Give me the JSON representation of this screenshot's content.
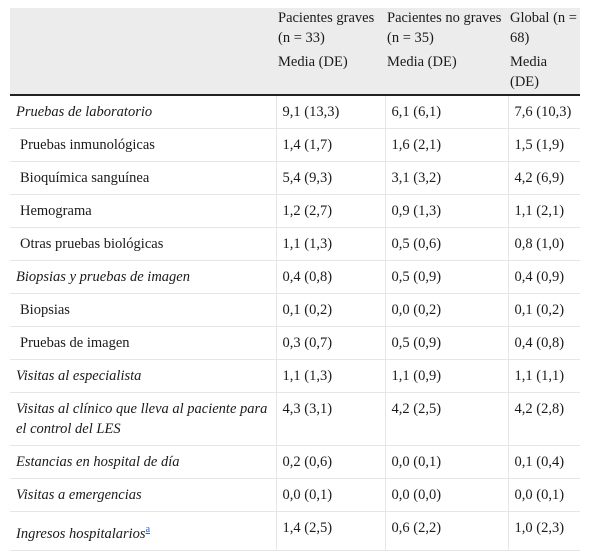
{
  "header": {
    "col1": {
      "line1": "Pacientes graves (n = 33)",
      "line2": "Media (DE)"
    },
    "col2": {
      "line1": "Pacientes no graves (n = 35)",
      "line2": "Media (DE)"
    },
    "col3": {
      "line1": "Global (n = 68)",
      "line2": "Media (DE)"
    }
  },
  "rows": [
    {
      "label": "Pruebas de laboratorio",
      "italic": true,
      "v1": "9,1 (13,3)",
      "v2": "6,1 (6,1)",
      "v3": "7,6 (10,3)"
    },
    {
      "label": "Pruebas inmunológicas",
      "italic": false,
      "v1": "1,4 (1,7)",
      "v2": "1,6 (2,1)",
      "v3": "1,5 (1,9)"
    },
    {
      "label": "Bioquímica sanguínea",
      "italic": false,
      "v1": "5,4 (9,3)",
      "v2": "3,1 (3,2)",
      "v3": "4,2 (6,9)"
    },
    {
      "label": "Hemograma",
      "italic": false,
      "v1": "1,2 (2,7)",
      "v2": "0,9 (1,3)",
      "v3": "1,1 (2,1)"
    },
    {
      "label": "Otras pruebas biológicas",
      "italic": false,
      "v1": "1,1 (1,3)",
      "v2": "0,5 (0,6)",
      "v3": "0,8 (1,0)"
    },
    {
      "label": "Biopsias y pruebas de imagen",
      "italic": true,
      "v1": "0,4 (0,8)",
      "v2": "0,5 (0,9)",
      "v3": "0,4 (0,9)"
    },
    {
      "label": "Biopsias",
      "italic": false,
      "v1": "0,1 (0,2)",
      "v2": "0,0 (0,2)",
      "v3": "0,1 (0,2)"
    },
    {
      "label": "Pruebas de imagen",
      "italic": false,
      "v1": "0,3 (0,7)",
      "v2": "0,5 (0,9)",
      "v3": "0,4 (0,8)"
    },
    {
      "label": "Visitas al especialista",
      "italic": true,
      "v1": "1,1 (1,3)",
      "v2": "1,1 (0,9)",
      "v3": "1,1 (1,1)"
    },
    {
      "label": "Visitas al clínico que lleva al paciente para el control del LES",
      "italic": true,
      "v1": "4,3 (3,1)",
      "v2": "4,2 (2,5)",
      "v3": "4,2 (2,8)"
    },
    {
      "label": "Estancias en hospital de día",
      "italic": true,
      "v1": "0,2 (0,6)",
      "v2": "0,0 (0,1)",
      "v3": "0,1 (0,4)"
    },
    {
      "label": "Visitas a emergencias",
      "italic": true,
      "v1": "0,0 (0,1)",
      "v2": "0,0 (0,0)",
      "v3": "0,0 (0,1)"
    },
    {
      "label": "Ingresos hospitalarios",
      "italic": true,
      "footnote": "a",
      "v1": "1,4 (2,5)",
      "v2": "0,6 (2,2)",
      "v3": "1,0 (2,3)"
    }
  ]
}
